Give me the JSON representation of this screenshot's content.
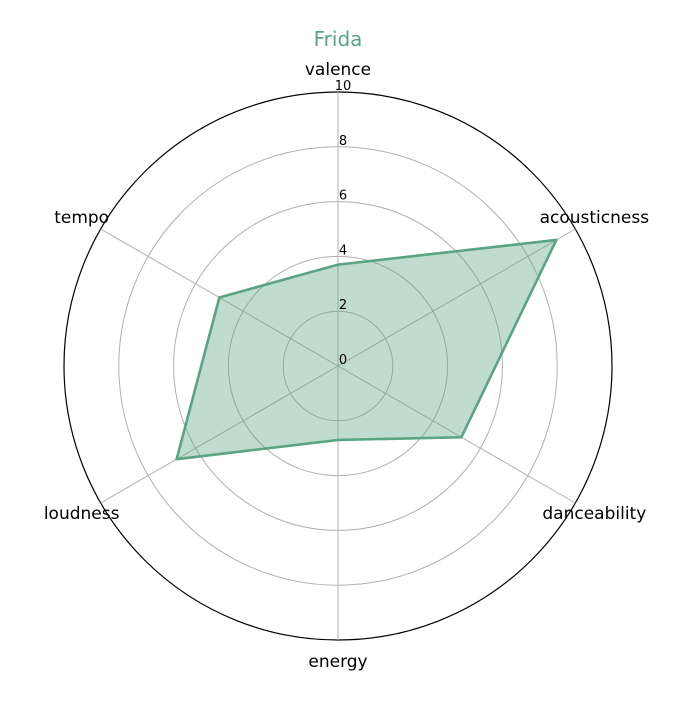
{
  "chart_data": {
    "type": "radar",
    "title": "Frida",
    "title_color": "#5aa383",
    "series_color": "#5aa383",
    "fill_color": "#5aa383",
    "categories": [
      "valence",
      "acousticness",
      "danceability",
      "energy",
      "loudness",
      "tempo"
    ],
    "series": [
      {
        "values": [
          3.7,
          9.2,
          5.2,
          2.7,
          6.8,
          5.0
        ]
      }
    ],
    "rlim": [
      0,
      10
    ],
    "rticks": [
      "0",
      "2",
      "4",
      "6",
      "8",
      "10"
    ],
    "grid": true
  }
}
